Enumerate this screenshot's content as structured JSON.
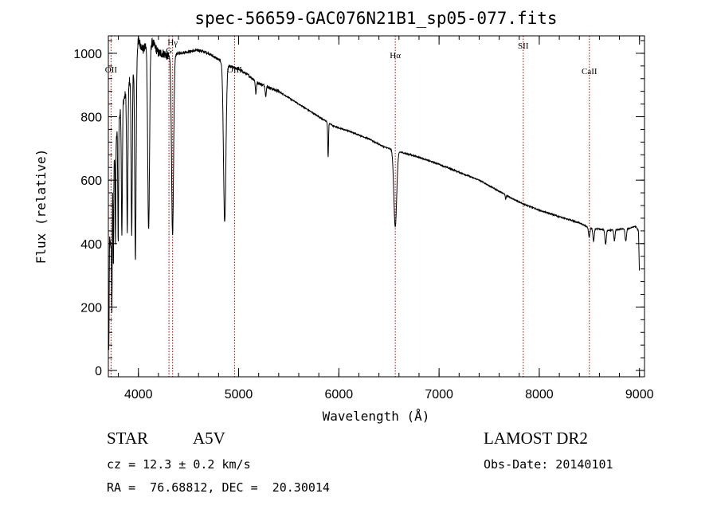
{
  "chart_data": {
    "type": "line",
    "title": "spec-56659-GAC076N21B1_sp05-077.fits",
    "xlabel": "Wavelength (Å)",
    "ylabel": "Flux (relative)",
    "xlim": [
      3700,
      9050
    ],
    "ylim": [
      -20,
      1055
    ],
    "xticks": [
      4000,
      5000,
      6000,
      7000,
      8000,
      9000
    ],
    "yticks": [
      0,
      200,
      400,
      600,
      800,
      1000
    ],
    "grid": false,
    "line_color": "#000000",
    "marker_color": "#aa0000",
    "lines": [
      {
        "name": "OII",
        "wavelength": 3727,
        "label_flux": 940
      },
      {
        "name": "Hγ",
        "wavelength": 4341,
        "label_flux": 1025
      },
      {
        "name": "G",
        "wavelength": 4305,
        "label_flux": 1000
      },
      {
        "name": "OIII",
        "wavelength": 4959,
        "label_flux": 940
      },
      {
        "name": "Hα",
        "wavelength": 6563,
        "label_flux": 985
      },
      {
        "name": "SII",
        "wavelength": 7840,
        "label_flux": 1015
      },
      {
        "name": "CaII",
        "wavelength": 8500,
        "label_flux": 935
      }
    ],
    "continuum": [
      [
        3705,
        60
      ],
      [
        3712,
        420
      ],
      [
        3725,
        380
      ],
      [
        3745,
        600
      ],
      [
        3770,
        700
      ],
      [
        3800,
        790
      ],
      [
        3850,
        850
      ],
      [
        3900,
        900
      ],
      [
        3950,
        960
      ],
      [
        4000,
        1040
      ],
      [
        4050,
        1010
      ],
      [
        4100,
        1040
      ],
      [
        4150,
        1030
      ],
      [
        4200,
        1000
      ],
      [
        4250,
        1000
      ],
      [
        4300,
        990
      ],
      [
        4400,
        1000
      ],
      [
        4500,
        1005
      ],
      [
        4600,
        1010
      ],
      [
        4700,
        1000
      ],
      [
        4800,
        980
      ],
      [
        4900,
        960
      ],
      [
        5000,
        950
      ],
      [
        5100,
        930
      ],
      [
        5200,
        905
      ],
      [
        5400,
        880
      ],
      [
        5600,
        840
      ],
      [
        5800,
        800
      ],
      [
        5950,
        770
      ],
      [
        6100,
        755
      ],
      [
        6300,
        730
      ],
      [
        6450,
        705
      ],
      [
        6600,
        690
      ],
      [
        6800,
        672
      ],
      [
        7000,
        650
      ],
      [
        7200,
        625
      ],
      [
        7400,
        600
      ],
      [
        7600,
        565
      ],
      [
        7800,
        530
      ],
      [
        8000,
        505
      ],
      [
        8200,
        485
      ],
      [
        8400,
        465
      ],
      [
        8500,
        450
      ],
      [
        8600,
        445
      ],
      [
        8700,
        442
      ],
      [
        8800,
        445
      ],
      [
        8900,
        448
      ],
      [
        8960,
        455
      ],
      [
        8990,
        440
      ],
      [
        9000,
        300
      ]
    ],
    "absorption": [
      {
        "center": 3735,
        "depth": 300,
        "width": 3
      },
      {
        "center": 3750,
        "depth": 300,
        "width": 3
      },
      {
        "center": 3771,
        "depth": 300,
        "width": 3
      },
      {
        "center": 3798,
        "depth": 380,
        "width": 4
      },
      {
        "center": 3835,
        "depth": 400,
        "width": 5
      },
      {
        "center": 3889,
        "depth": 450,
        "width": 6
      },
      {
        "center": 3933,
        "depth": 500,
        "width": 6
      },
      {
        "center": 3970,
        "depth": 640,
        "width": 7
      },
      {
        "center": 4102,
        "depth": 600,
        "width": 9
      },
      {
        "center": 4341,
        "depth": 570,
        "width": 10
      },
      {
        "center": 4861,
        "depth": 500,
        "width": 12
      },
      {
        "center": 5172,
        "depth": 40,
        "width": 5
      },
      {
        "center": 5270,
        "depth": 30,
        "width": 5
      },
      {
        "center": 5893,
        "depth": 110,
        "width": 4
      },
      {
        "center": 6563,
        "depth": 240,
        "width": 14
      },
      {
        "center": 7665,
        "depth": 15,
        "width": 4
      },
      {
        "center": 8498,
        "depth": 30,
        "width": 7
      },
      {
        "center": 8542,
        "depth": 40,
        "width": 7
      },
      {
        "center": 8662,
        "depth": 45,
        "width": 7
      },
      {
        "center": 8750,
        "depth": 35,
        "width": 6
      },
      {
        "center": 8863,
        "depth": 40,
        "width": 7
      }
    ]
  },
  "info": {
    "object_type": "STAR",
    "subclass": "A5V",
    "survey": "LAMOST DR2",
    "cz": "cz = 12.3 ± 0.2 km/s",
    "obs_date": "Obs-Date: 20140101",
    "radec": "RA =  76.68812, DEC =  20.30014"
  }
}
